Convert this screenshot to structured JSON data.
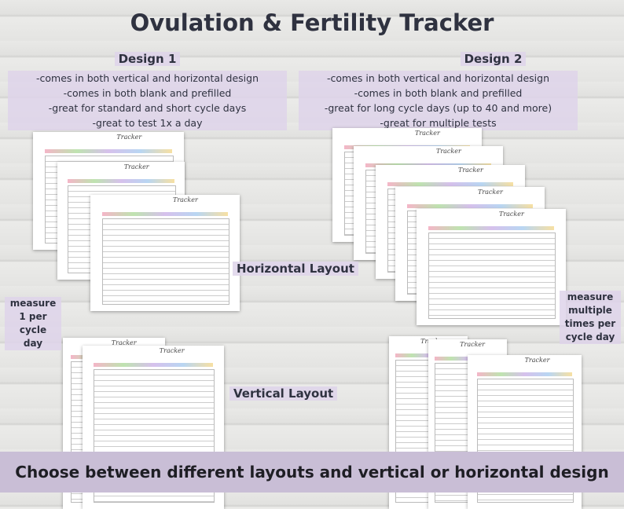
{
  "header": {
    "title": "Ovulation & Fertility Tracker"
  },
  "design1": {
    "heading": "Design 1",
    "bullets": [
      "-comes in both vertical and horizontal design",
      "-comes in both blank and prefilled",
      "-great for standard and short cycle days",
      "-great to test 1x a day"
    ]
  },
  "design2": {
    "heading": "Design 2",
    "bullets": [
      "-comes in both vertical and horizontal design",
      "-comes in both blank and prefilled",
      "-great for long cycle days (up to 40 and more)",
      "-great for multiple tests"
    ]
  },
  "sheet_label": "Tracker",
  "labels": {
    "horizontal": "Horizontal Layout",
    "vertical": "Vertical Layout",
    "single": [
      "measure",
      "1 per",
      "cycle day"
    ],
    "multiple": [
      "measure",
      "multiple",
      "times per",
      "cycle day"
    ]
  },
  "banner": "Choose between different layouts and vertical or horizontal design"
}
